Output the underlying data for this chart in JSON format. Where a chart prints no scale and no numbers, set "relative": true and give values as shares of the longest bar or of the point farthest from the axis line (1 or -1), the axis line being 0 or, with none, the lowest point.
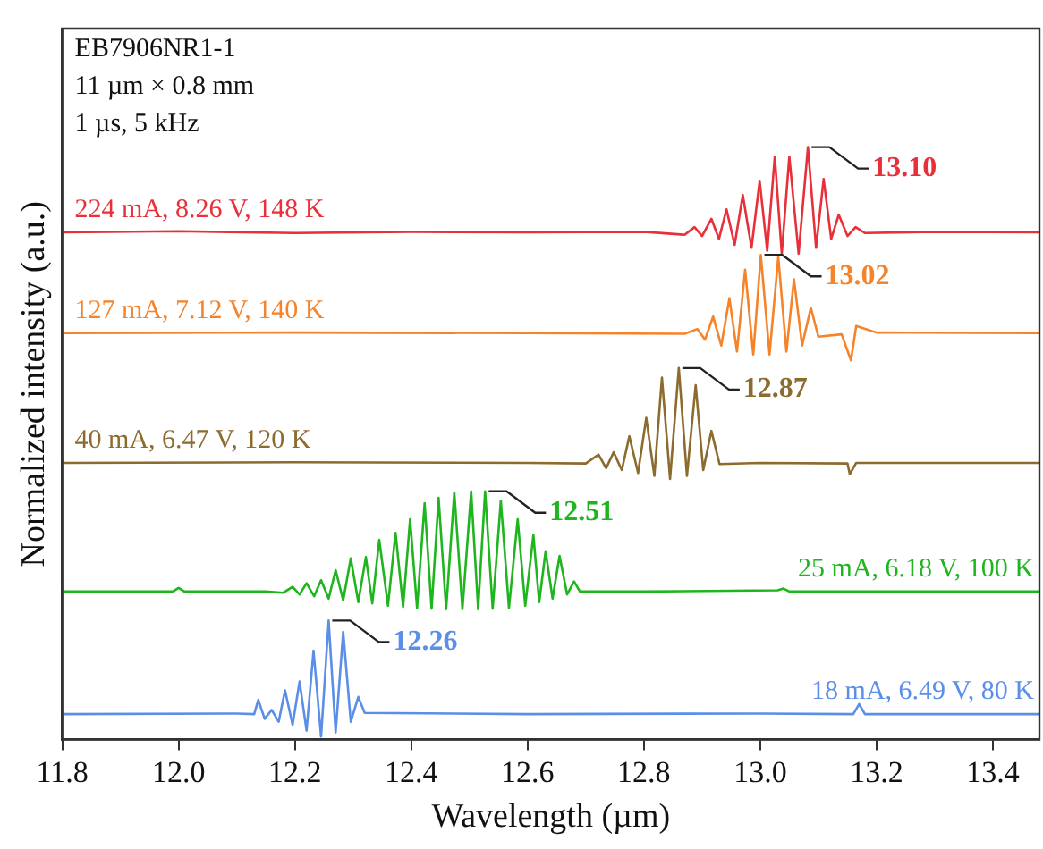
{
  "chart_data": {
    "type": "line",
    "relative": true,
    "xlabel": "Wavelength (µm)",
    "ylabel": "Normalized intensity (a.u.)",
    "xlim": [
      11.8,
      13.48
    ],
    "xticks": [
      11.8,
      {
        "value": 12,
        "label": "12.0"
      },
      12.2,
      12.4,
      12.6,
      12.8,
      {
        "value": 13,
        "label": "13.0"
      },
      13.2,
      13.4
    ],
    "legend": false,
    "grid": false,
    "annotations": [
      "EB7906NR1-1",
      "11 µm × 0.8 mm",
      "1 µs, 5 kHz",
      {
        "text": "13.10",
        "x": 13.082,
        "y": 1.0
      },
      {
        "text": "13.02",
        "x": 13.001,
        "y": 0.818
      },
      {
        "text": "12.87",
        "x": 12.86,
        "y": 0.627
      },
      {
        "text": "12.51",
        "x": 12.527,
        "y": 0.419
      },
      {
        "text": "12.26",
        "x": 12.258,
        "y": 0.201
      }
    ],
    "series": [
      {
        "name": "224 mA, 8.26 V, 148 K",
        "color": "#e8303a",
        "x": [
          11.8,
          12.0,
          12.2,
          12.4,
          12.6,
          12.8,
          12.87,
          12.887,
          12.9,
          12.916,
          12.929,
          12.942,
          12.956,
          12.97,
          12.985,
          12.999,
          13.012,
          13.025,
          13.037,
          13.05,
          13.066,
          13.082,
          13.096,
          13.109,
          13.122,
          13.135,
          13.15,
          13.164,
          13.18,
          13.3,
          13.48
        ],
        "values": [
          0.856,
          0.858,
          0.855,
          0.857,
          0.856,
          0.857,
          0.852,
          0.865,
          0.85,
          0.879,
          0.845,
          0.895,
          0.835,
          0.919,
          0.83,
          0.943,
          0.825,
          0.984,
          0.82,
          0.984,
          0.82,
          1.0,
          0.83,
          0.946,
          0.845,
          0.886,
          0.85,
          0.865,
          0.855,
          0.857,
          0.856
        ]
      },
      {
        "name": "127 mA, 7.12 V, 140 K",
        "color": "#f5832a",
        "x": [
          11.8,
          12.2,
          12.6,
          12.87,
          12.892,
          12.905,
          12.919,
          12.933,
          12.947,
          12.96,
          12.974,
          12.988,
          13.001,
          13.016,
          13.031,
          13.045,
          13.058,
          13.072,
          13.087,
          13.1,
          13.14,
          13.156,
          13.165,
          13.2,
          13.48
        ],
        "values": [
          0.686,
          0.687,
          0.686,
          0.685,
          0.693,
          0.675,
          0.714,
          0.665,
          0.745,
          0.655,
          0.793,
          0.65,
          0.818,
          0.65,
          0.815,
          0.655,
          0.777,
          0.665,
          0.729,
          0.68,
          0.684,
          0.64,
          0.698,
          0.687,
          0.686
        ]
      },
      {
        "name": "40 mA, 6.47 V, 120 K",
        "color": "#8c6b2e",
        "x": [
          11.8,
          12.2,
          12.6,
          12.7,
          12.722,
          12.735,
          12.748,
          12.762,
          12.775,
          12.79,
          12.804,
          12.818,
          12.831,
          12.845,
          12.86,
          12.874,
          12.889,
          12.902,
          12.916,
          12.93,
          13.0,
          13.15,
          13.154,
          13.165,
          13.48
        ],
        "values": [
          0.467,
          0.468,
          0.467,
          0.466,
          0.481,
          0.458,
          0.485,
          0.455,
          0.512,
          0.45,
          0.543,
          0.445,
          0.611,
          0.44,
          0.627,
          0.445,
          0.598,
          0.455,
          0.521,
          0.465,
          0.467,
          0.466,
          0.448,
          0.467,
          0.467
        ]
      },
      {
        "name": "25 mA, 6.18 V, 100 K",
        "color": "#1fb51f",
        "x": [
          11.8,
          11.99,
          12.0,
          12.01,
          12.15,
          12.18,
          12.196,
          12.208,
          12.22,
          12.233,
          12.245,
          12.258,
          12.27,
          12.283,
          12.296,
          12.309,
          12.322,
          12.333,
          12.345,
          12.36,
          12.373,
          12.386,
          12.398,
          12.41,
          12.423,
          12.435,
          12.447,
          12.46,
          12.474,
          12.488,
          12.503,
          12.515,
          12.527,
          12.54,
          12.554,
          12.568,
          12.583,
          12.596,
          12.61,
          12.62,
          12.631,
          12.643,
          12.655,
          12.668,
          12.68,
          12.69,
          12.8,
          13.03,
          13.04,
          13.05,
          13.48
        ],
        "values": [
          0.25,
          0.25,
          0.256,
          0.25,
          0.25,
          0.248,
          0.258,
          0.245,
          0.264,
          0.242,
          0.269,
          0.238,
          0.286,
          0.235,
          0.306,
          0.232,
          0.308,
          0.23,
          0.337,
          0.226,
          0.349,
          0.224,
          0.372,
          0.222,
          0.399,
          0.221,
          0.408,
          0.22,
          0.417,
          0.22,
          0.419,
          0.22,
          0.419,
          0.221,
          0.403,
          0.222,
          0.372,
          0.226,
          0.345,
          0.232,
          0.318,
          0.238,
          0.31,
          0.245,
          0.267,
          0.25,
          0.25,
          0.252,
          0.255,
          0.25,
          0.25
        ]
      },
      {
        "name": "18 mA, 6.49 V, 80 K",
        "color": "#5b8ee6",
        "x": [
          11.8,
          12.1,
          12.13,
          12.137,
          12.148,
          12.16,
          12.172,
          12.183,
          12.196,
          12.208,
          12.22,
          12.232,
          12.245,
          12.258,
          12.27,
          12.283,
          12.296,
          12.309,
          12.32,
          12.6,
          13.0,
          13.16,
          13.17,
          13.18,
          13.48
        ],
        "values": [
          0.043,
          0.044,
          0.043,
          0.067,
          0.035,
          0.05,
          0.03,
          0.083,
          0.025,
          0.098,
          0.015,
          0.15,
          0.005,
          0.201,
          0.012,
          0.182,
          0.03,
          0.072,
          0.045,
          0.043,
          0.044,
          0.043,
          0.06,
          0.043,
          0.043
        ]
      }
    ]
  }
}
